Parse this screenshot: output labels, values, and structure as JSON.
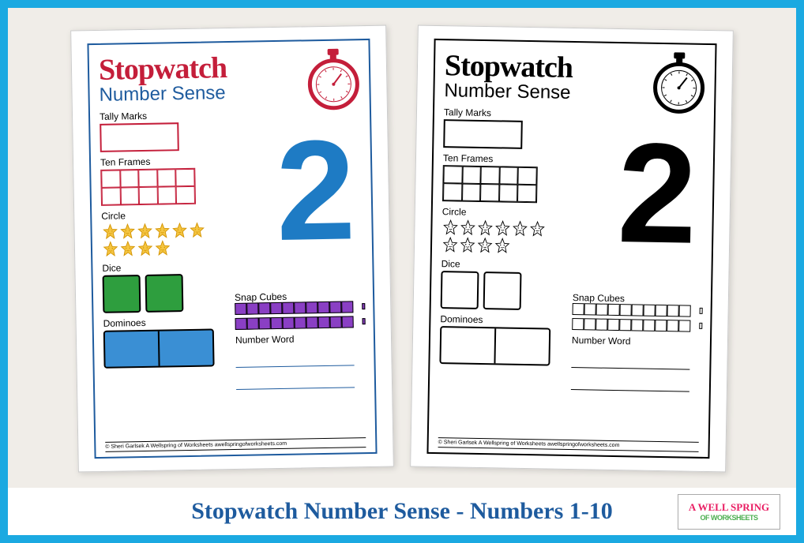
{
  "frame": {
    "border_color": "#1ba9e1",
    "bg_color": "#f0ede8"
  },
  "caption": {
    "text": "Stopwatch Number Sense - Numbers 1-10",
    "color": "#1e5b9e"
  },
  "logo": {
    "line1": "A WELL SPRING",
    "line2": "OF WORKSHEETS"
  },
  "worksheet": {
    "title": "Stopwatch",
    "subtitle": "Number Sense",
    "number": "2",
    "labels": {
      "tally": "Tally Marks",
      "tenframes": "Ten Frames",
      "circle": "Circle",
      "dice": "Dice",
      "dominoes": "Dominoes",
      "snapcubes": "Snap Cubes",
      "numberword": "Number Word"
    },
    "footer": "© Sheri Garlsek   A Wellspring of Worksheets     awellspringofworksheets.com",
    "star_count": 10,
    "cube_count": 10
  },
  "color_version": {
    "border": "#1e5b9e",
    "title_color": "#c41e3a",
    "subtitle_color": "#1e5b9e",
    "number_color": "#1e7bc4",
    "tally_border": "#c41e3a",
    "tenframe_border": "#c41e3a",
    "star_fill": "#f4c542",
    "star_stroke": "#d49400",
    "die_fill": "#2e9e3e",
    "domino_fill": "#3a8fd4",
    "cube_fill": "#8a3fc4",
    "stopwatch_stroke": "#c41e3a",
    "stopwatch_fill": "#ffffff"
  },
  "bw_version": {
    "border": "#000000",
    "title_color": "#000000",
    "subtitle_color": "#000000",
    "number_color": "#000000",
    "tally_border": "#000000",
    "tenframe_border": "#000000",
    "star_fill": "#ffffff",
    "star_stroke": "#000000",
    "die_fill": "#ffffff",
    "domino_fill": "#ffffff",
    "cube_fill": "#ffffff",
    "stopwatch_stroke": "#000000",
    "stopwatch_fill": "#ffffff"
  }
}
